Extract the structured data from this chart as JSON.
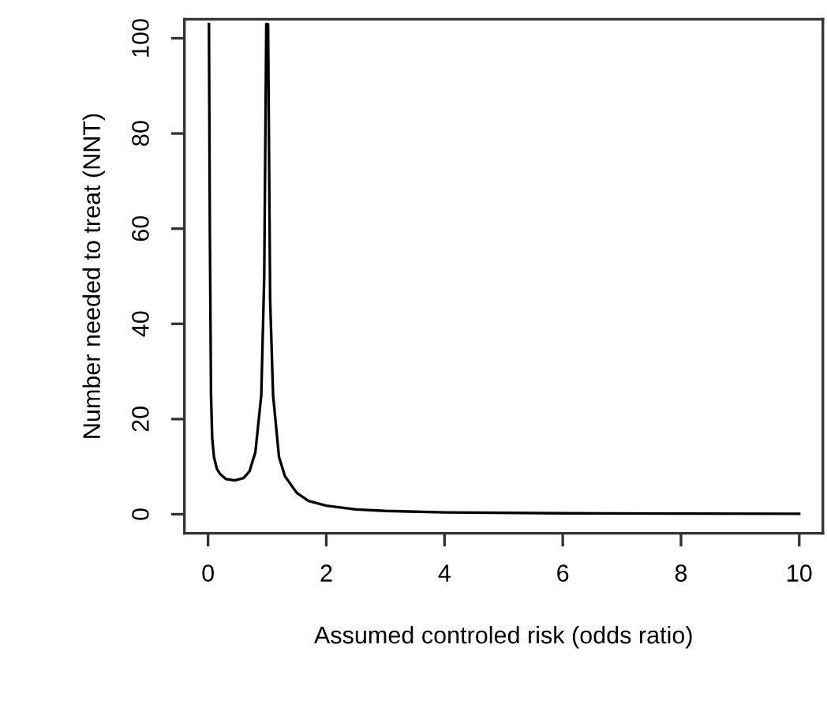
{
  "chart_data": {
    "type": "line",
    "xlabel": "Assumed controled risk (odds ratio)",
    "ylabel": "Number needed to treat (NNT)",
    "x": [
      0.015,
      0.03,
      0.05,
      0.07,
      0.1,
      0.15,
      0.2,
      0.3,
      0.45,
      0.6,
      0.7,
      0.8,
      0.9,
      0.95,
      0.985,
      1.015,
      1.05,
      1.1,
      1.2,
      1.3,
      1.5,
      1.7,
      2,
      2.5,
      3,
      4,
      6,
      8,
      10
    ],
    "series": [
      {
        "color": "#000000",
        "values": [
          103,
          60,
          25,
          16,
          12,
          9.5,
          8.5,
          7.4,
          7.1,
          7.6,
          9,
          13,
          25,
          50,
          103,
          103,
          45,
          25,
          12,
          8,
          4.5,
          2.8,
          1.8,
          1.0,
          0.7,
          0.4,
          0.2,
          0.15,
          0.1
        ]
      }
    ],
    "xlim": [
      -0.4,
      10.4
    ],
    "ylim": [
      -4,
      104
    ],
    "xticks": [
      0,
      2,
      4,
      6,
      8,
      10
    ],
    "yticks": [
      0,
      20,
      40,
      60,
      80,
      100
    ],
    "grid": false,
    "legend": false,
    "marker": "none",
    "line_style": "solid"
  }
}
